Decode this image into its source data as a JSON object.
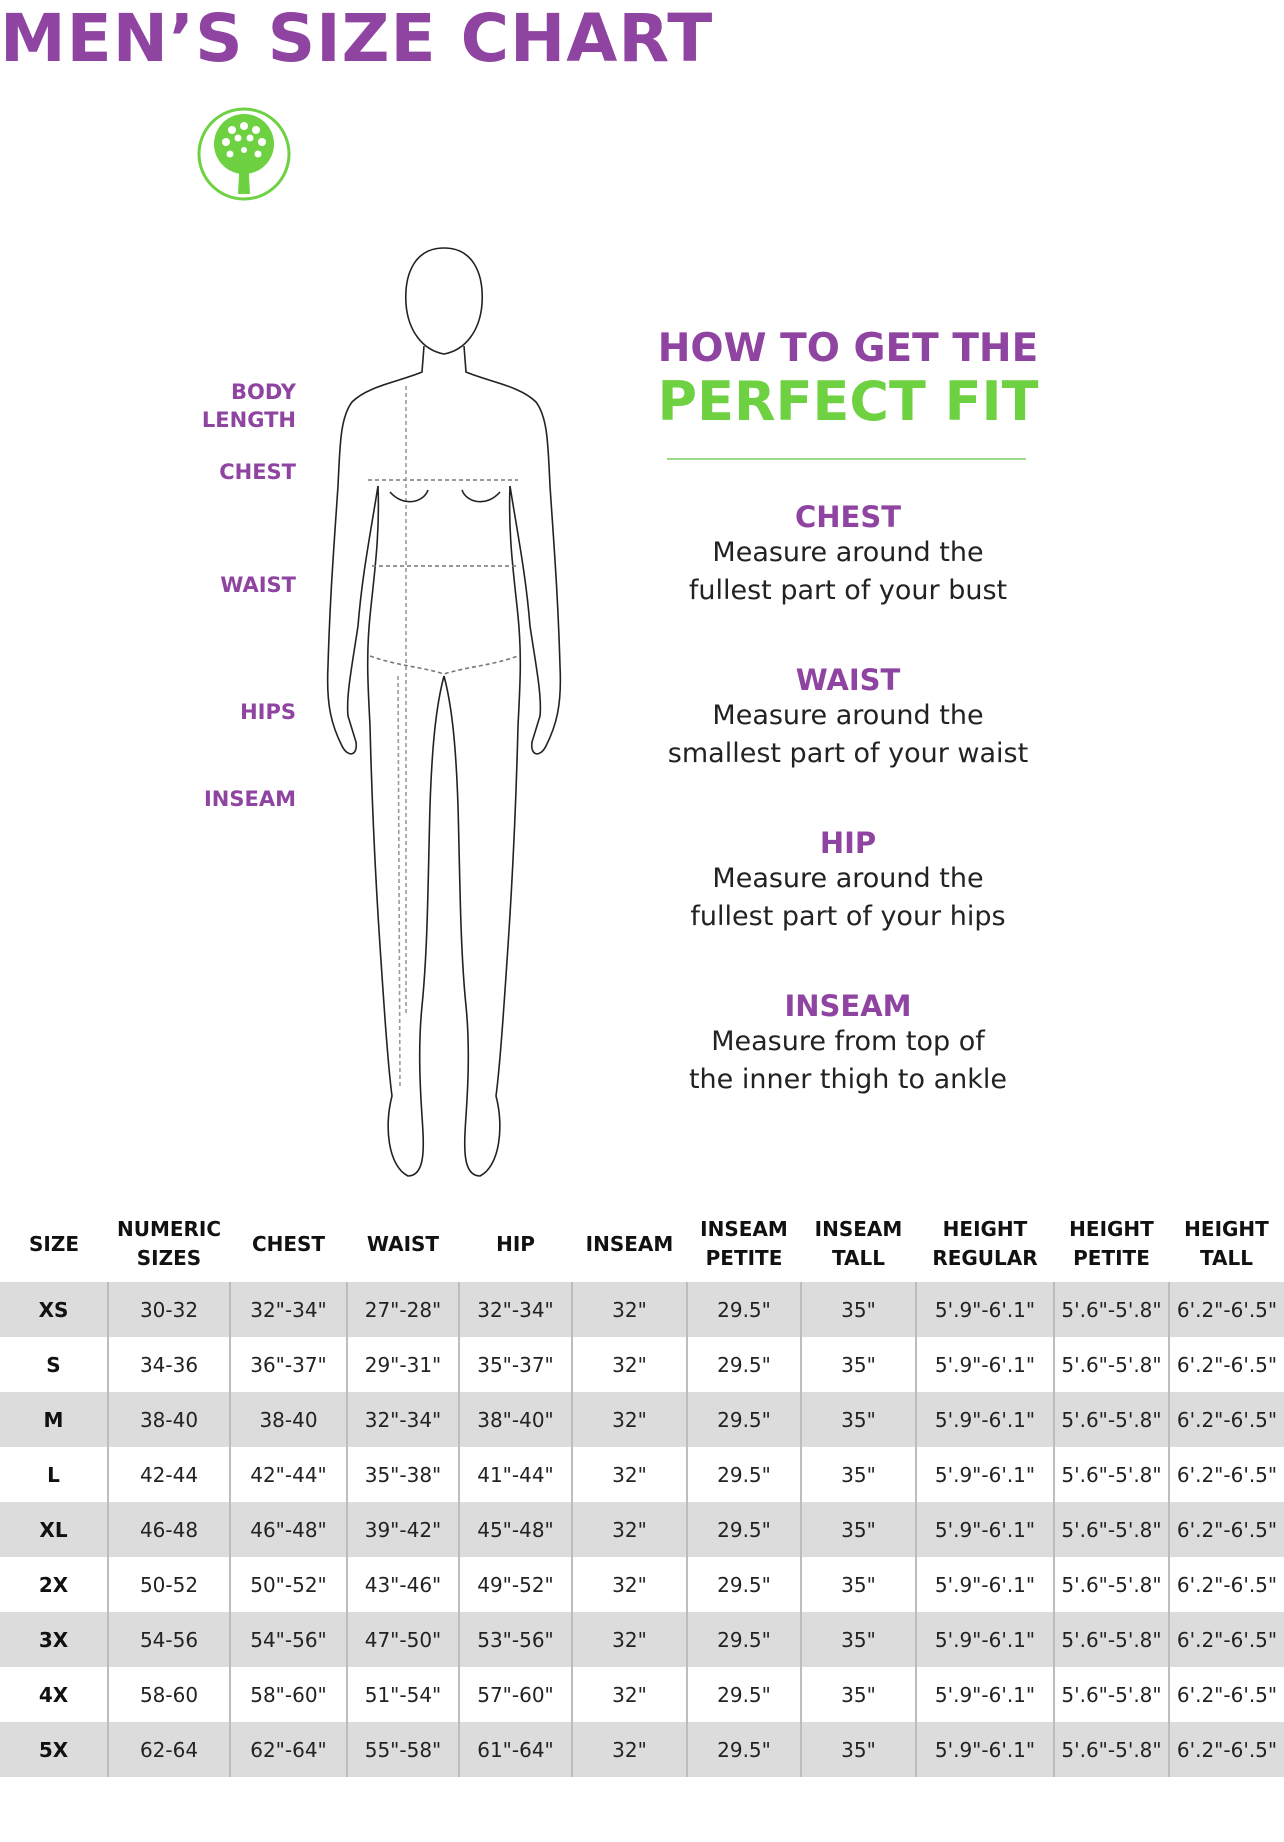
{
  "header": {
    "title": "MEN’S SIZE CHART",
    "logo": "tree-logo",
    "colors": {
      "purple": "#8e44a0",
      "green": "#6dd142"
    }
  },
  "figure": {
    "labels": [
      "BODY",
      "LENGTH",
      "CHEST",
      "WAIST",
      "HIPS",
      "INSEAM"
    ]
  },
  "guide": {
    "heading_line1": "HOW TO GET THE",
    "heading_line2": "PERFECT FIT",
    "items": [
      {
        "title": "CHEST",
        "line1": "Measure around the",
        "line2": "fullest part of your bust"
      },
      {
        "title": "WAIST",
        "line1": "Measure around the",
        "line2": "smallest part of your waist"
      },
      {
        "title": "HIP",
        "line1": "Measure around the",
        "line2": "fullest part of your hips"
      },
      {
        "title": "INSEAM",
        "line1": "Measure from top of",
        "line2": "the inner thigh to ankle"
      }
    ]
  },
  "table": {
    "headers": [
      [
        "SIZE",
        ""
      ],
      [
        "NUMERIC",
        "SIZES"
      ],
      [
        "CHEST",
        ""
      ],
      [
        "WAIST",
        ""
      ],
      [
        "HIP",
        ""
      ],
      [
        "INSEAM",
        ""
      ],
      [
        "INSEAM",
        "PETITE"
      ],
      [
        "INSEAM",
        "TALL"
      ],
      [
        "HEIGHT",
        "REGULAR"
      ],
      [
        "HEIGHT",
        "PETITE"
      ],
      [
        "HEIGHT",
        "TALL"
      ]
    ],
    "rows": [
      [
        "XS",
        "30-32",
        "32\"-34\"",
        "27\"-28\"",
        "32\"-34\"",
        "32\"",
        "29.5\"",
        "35\"",
        "5'.9\"-6'.1\"",
        "5'.6\"-5'.8\"",
        "6'.2\"-6'.5\""
      ],
      [
        "S",
        "34-36",
        "36\"-37\"",
        "29\"-31\"",
        "35\"-37\"",
        "32\"",
        "29.5\"",
        "35\"",
        "5'.9\"-6'.1\"",
        "5'.6\"-5'.8\"",
        "6'.2\"-6'.5\""
      ],
      [
        "M",
        "38-40",
        "38-40",
        "32\"-34\"",
        "38\"-40\"",
        "32\"",
        "29.5\"",
        "35\"",
        "5'.9\"-6'.1\"",
        "5'.6\"-5'.8\"",
        "6'.2\"-6'.5\""
      ],
      [
        "L",
        "42-44",
        "42\"-44\"",
        "35\"-38\"",
        "41\"-44\"",
        "32\"",
        "29.5\"",
        "35\"",
        "5'.9\"-6'.1\"",
        "5'.6\"-5'.8\"",
        "6'.2\"-6'.5\""
      ],
      [
        "XL",
        "46-48",
        "46\"-48\"",
        "39\"-42\"",
        "45\"-48\"",
        "32\"",
        "29.5\"",
        "35\"",
        "5'.9\"-6'.1\"",
        "5'.6\"-5'.8\"",
        "6'.2\"-6'.5\""
      ],
      [
        "2X",
        "50-52",
        "50\"-52\"",
        "43\"-46\"",
        "49\"-52\"",
        "32\"",
        "29.5\"",
        "35\"",
        "5'.9\"-6'.1\"",
        "5'.6\"-5'.8\"",
        "6'.2\"-6'.5\""
      ],
      [
        "3X",
        "54-56",
        "54\"-56\"",
        "47\"-50\"",
        "53\"-56\"",
        "32\"",
        "29.5\"",
        "35\"",
        "5'.9\"-6'.1\"",
        "5'.6\"-5'.8\"",
        "6'.2\"-6'.5\""
      ],
      [
        "4X",
        "58-60",
        "58\"-60\"",
        "51\"-54\"",
        "57\"-60\"",
        "32\"",
        "29.5\"",
        "35\"",
        "5'.9\"-6'.1\"",
        "5'.6\"-5'.8\"",
        "6'.2\"-6'.5\""
      ],
      [
        "5X",
        "62-64",
        "62\"-64\"",
        "55\"-58\"",
        "61\"-64\"",
        "32\"",
        "29.5\"",
        "35\"",
        "5'.9\"-6'.1\"",
        "5'.6\"-5'.8\"",
        "6'.2\"-6'.5\""
      ]
    ]
  }
}
